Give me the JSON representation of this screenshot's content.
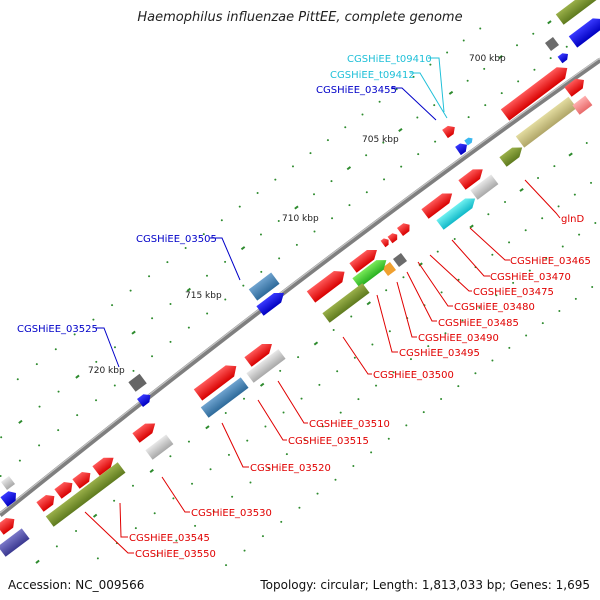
{
  "title": "Haemophilus influenzae PittEE, complete genome",
  "footer": {
    "accession": "Accession: NC_009566",
    "stats": "Topology: circular; Length: 1,813,033 bp; Genes: 1,695"
  },
  "colors": {
    "backbone": "#7f7f7f",
    "tick": "#2e8b2e",
    "label_red": "#e00000",
    "label_blue": "#0000c8",
    "label_cyan": "#20c0d8"
  },
  "kbp_marks": [
    "700 kbp",
    "705 kbp",
    "710 kbp",
    "715 kbp",
    "720 kbp"
  ],
  "gene_labels": [
    {
      "text": "CGSHiEE_t09410",
      "color": "cyan"
    },
    {
      "text": "CGSHiEE_t09412",
      "color": "cyan"
    },
    {
      "text": "CGSHiEE_03455",
      "color": "blue"
    },
    {
      "text": "CGSHiEE_03505",
      "color": "blue"
    },
    {
      "text": "CGSHiEE_03525",
      "color": "blue"
    },
    {
      "text": "glnD",
      "color": "red"
    },
    {
      "text": "CGSHiEE_03465",
      "color": "red"
    },
    {
      "text": "CGSHiEE_03470",
      "color": "red"
    },
    {
      "text": "CGSHiEE_03475",
      "color": "red"
    },
    {
      "text": "CGSHiEE_03480",
      "color": "red"
    },
    {
      "text": "CGSHiEE_03485",
      "color": "red"
    },
    {
      "text": "CGSHiEE_03490",
      "color": "red"
    },
    {
      "text": "CGSHiEE_03495",
      "color": "red"
    },
    {
      "text": "CGSHiEE_03500",
      "color": "red"
    },
    {
      "text": "CGSHiEE_03510",
      "color": "red"
    },
    {
      "text": "CGSHiEE_03515",
      "color": "red"
    },
    {
      "text": "CGSHiEE_03520",
      "color": "red"
    },
    {
      "text": "CGSHiEE_03530",
      "color": "red"
    },
    {
      "text": "CGSHiEE_03545",
      "color": "red"
    },
    {
      "text": "CGSHiEE_03550",
      "color": "red"
    }
  ]
}
